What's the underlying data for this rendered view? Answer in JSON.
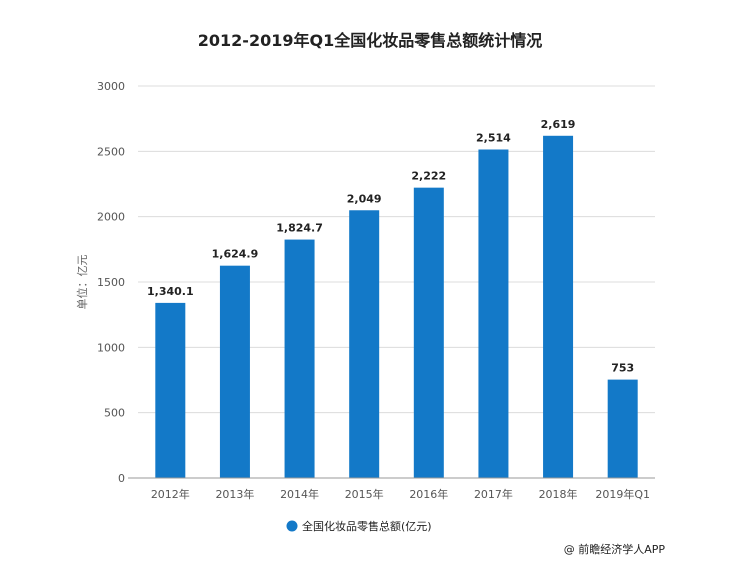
{
  "chart_data": {
    "type": "bar",
    "title": "2012-2019年Q1全国化妆品零售总额统计情况",
    "ylabel": "单位：亿元",
    "xlabel": "",
    "categories": [
      "2012年",
      "2013年",
      "2014年",
      "2015年",
      "2016年",
      "2017年",
      "2018年",
      "2019年Q1"
    ],
    "series": [
      {
        "name": "全国化妆品零售总额(亿元)",
        "values": [
          1340.1,
          1624.9,
          1824.7,
          2049,
          2222,
          2514,
          2619,
          753
        ],
        "labels": [
          "1,340.1",
          "1,624.9",
          "1,824.7",
          "2,049",
          "2,222",
          "2,514",
          "2,619",
          "753"
        ],
        "color": "#1379c8"
      }
    ],
    "ylim": [
      0,
      3000
    ],
    "yticks": [
      "0",
      "500",
      "1000",
      "1500",
      "2000",
      "2500",
      "3000"
    ],
    "grid": true,
    "legend_position": "bottom"
  },
  "source": "@ 前瞻经济学人APP"
}
